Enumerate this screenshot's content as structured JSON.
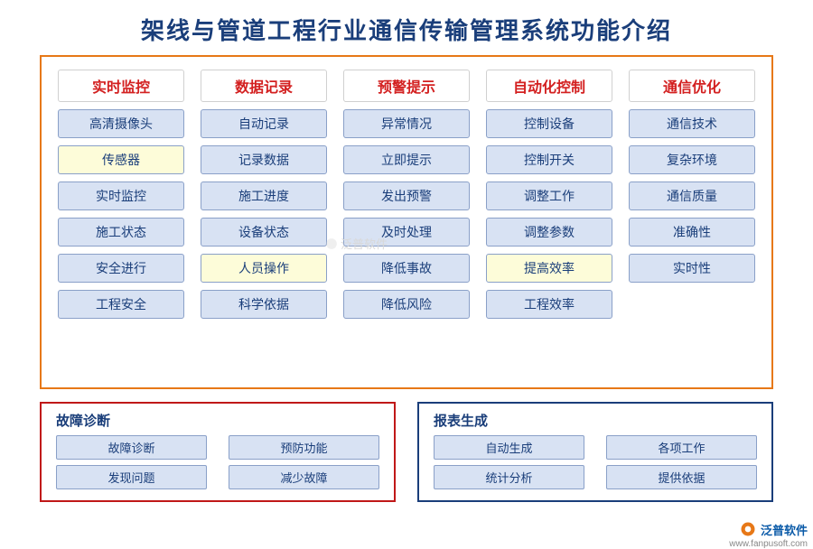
{
  "title": {
    "text": "架线与管道工程行业通信传输管理系统功能介绍",
    "color": "#1a3e7a"
  },
  "main": {
    "border_color": "#e77817",
    "header_bg": "#ffffff",
    "header_border": "#d0d0d0",
    "header_text_color": "#d32020",
    "cell_bg_normal": "#d8e2f3",
    "cell_bg_highlight": "#fdfcd9",
    "cell_border": "#8aa0c8",
    "cell_text_color": "#1a3e7a",
    "columns": [
      {
        "header": "实时监控",
        "items": [
          {
            "label": "高清摄像头",
            "hl": false
          },
          {
            "label": "传感器",
            "hl": true
          },
          {
            "label": "实时监控",
            "hl": false
          },
          {
            "label": "施工状态",
            "hl": false
          },
          {
            "label": "安全进行",
            "hl": false
          },
          {
            "label": "工程安全",
            "hl": false
          }
        ]
      },
      {
        "header": "数据记录",
        "items": [
          {
            "label": "自动记录",
            "hl": false
          },
          {
            "label": "记录数据",
            "hl": false
          },
          {
            "label": "施工进度",
            "hl": false
          },
          {
            "label": "设备状态",
            "hl": false
          },
          {
            "label": "人员操作",
            "hl": true
          },
          {
            "label": "科学依据",
            "hl": false
          }
        ]
      },
      {
        "header": "预警提示",
        "items": [
          {
            "label": "异常情况",
            "hl": false
          },
          {
            "label": "立即提示",
            "hl": false
          },
          {
            "label": "发出预警",
            "hl": false
          },
          {
            "label": "及时处理",
            "hl": false
          },
          {
            "label": "降低事故",
            "hl": false
          },
          {
            "label": "降低风险",
            "hl": false
          }
        ]
      },
      {
        "header": "自动化控制",
        "items": [
          {
            "label": "控制设备",
            "hl": false
          },
          {
            "label": "控制开关",
            "hl": false
          },
          {
            "label": "调整工作",
            "hl": false
          },
          {
            "label": "调整参数",
            "hl": false
          },
          {
            "label": "提高效率",
            "hl": true
          },
          {
            "label": "工程效率",
            "hl": false
          }
        ]
      },
      {
        "header": "通信优化",
        "items": [
          {
            "label": "通信技术",
            "hl": false
          },
          {
            "label": "复杂环境",
            "hl": false
          },
          {
            "label": "通信质量",
            "hl": false
          },
          {
            "label": "准确性",
            "hl": false
          },
          {
            "label": "实时性",
            "hl": false
          }
        ]
      }
    ]
  },
  "bottom": {
    "cell_bg": "#d8e2f3",
    "cell_border": "#8aa0c8",
    "cell_text_color": "#1a3e7a",
    "title_color": "#1a3e7a",
    "boxes": [
      {
        "title": "故障诊断",
        "border_color": "#c01818",
        "items": [
          "故障诊断",
          "预防功能",
          "发现问题",
          "减少故障"
        ]
      },
      {
        "title": "报表生成",
        "border_color": "#1a3e7a",
        "items": [
          "自动生成",
          "各项工作",
          "统计分析",
          "提供依据"
        ]
      }
    ]
  },
  "watermark": "泛普软件",
  "footer": {
    "brand": "泛普软件",
    "brand_color": "#0a5aa8",
    "url": "www.fanpusoft.com"
  }
}
